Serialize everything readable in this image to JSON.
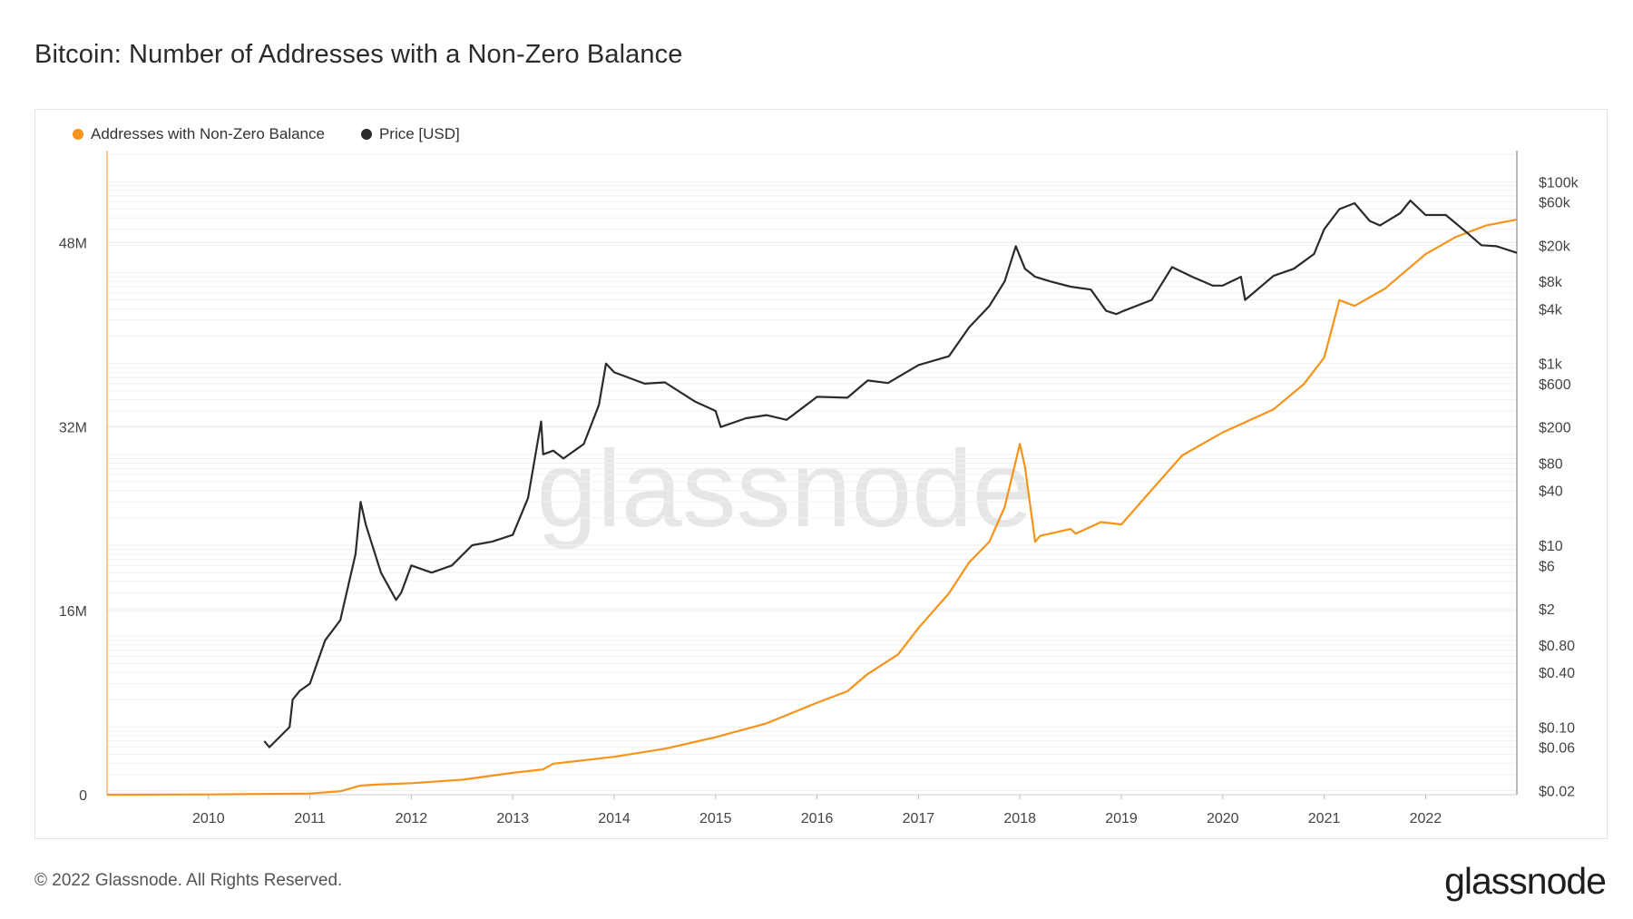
{
  "title": "Bitcoin: Number of Addresses with a Non-Zero Balance",
  "footer": {
    "copyright": "© 2022 Glassnode. All Rights Reserved.",
    "logo_text": "glassnode"
  },
  "watermark": "glassnode",
  "colors": {
    "addresses": "#f7931a",
    "price": "#2b2b2b",
    "grid": "#e9e9e9",
    "axis_text": "#444444"
  },
  "chart_data": {
    "type": "line",
    "title": "Bitcoin: Number of Addresses with a Non-Zero Balance",
    "grid": true,
    "legend_placement": "top-left",
    "x_axis": {
      "ticks": [
        "2010",
        "2011",
        "2012",
        "2013",
        "2014",
        "2015",
        "2016",
        "2017",
        "2018",
        "2019",
        "2020",
        "2021",
        "2022"
      ],
      "range": [
        2009.0,
        2022.9
      ]
    },
    "y_left": {
      "ticks": [
        0,
        16000000,
        32000000,
        48000000
      ],
      "tick_labels": [
        "0",
        "16M",
        "32M",
        "48M"
      ],
      "range": [
        0,
        56000000
      ]
    },
    "y_right": {
      "scale": "log",
      "ticks": [
        0.02,
        0.06,
        0.1,
        0.4,
        0.8,
        2,
        6,
        10,
        40,
        80,
        200,
        600,
        1000,
        4000,
        8000,
        20000,
        60000,
        100000
      ],
      "tick_labels": [
        "$0.02",
        "$0.06",
        "$0.10",
        "$0.40",
        "$0.80",
        "$2",
        "$6",
        "$10",
        "$40",
        "$80",
        "$200",
        "$600",
        "$1k",
        "$4k",
        "$8k",
        "$20k",
        "$60k",
        "$100k"
      ],
      "range": [
        0.018,
        220000
      ]
    },
    "series": [
      {
        "name": "Addresses with Non-Zero Balance",
        "axis": "left",
        "x": [
          2009.0,
          2010.0,
          2011.0,
          2011.3,
          2011.5,
          2011.7,
          2012.0,
          2012.5,
          2013.0,
          2013.3,
          2013.4,
          2014.0,
          2014.5,
          2015.0,
          2015.5,
          2016.0,
          2016.3,
          2016.5,
          2016.8,
          2017.0,
          2017.3,
          2017.5,
          2017.7,
          2017.85,
          2018.0,
          2018.05,
          2018.15,
          2018.2,
          2018.5,
          2018.55,
          2018.8,
          2019.0,
          2019.3,
          2019.6,
          2020.0,
          2020.5,
          2020.8,
          2021.0,
          2021.15,
          2021.3,
          2021.6,
          2021.8,
          2022.0,
          2022.3,
          2022.6,
          2022.9
        ],
        "values": [
          0,
          20000,
          100000,
          300000,
          800000,
          900000,
          1000000,
          1300000,
          1900000,
          2200000,
          2700000,
          3300000,
          4000000,
          5000000,
          6200000,
          8000000,
          9000000,
          10500000,
          12200000,
          14500000,
          17500000,
          20200000,
          22000000,
          25000000,
          30500000,
          28500000,
          22000000,
          22500000,
          23100000,
          22700000,
          23700000,
          23500000,
          26500000,
          29500000,
          31500000,
          33500000,
          35700000,
          38000000,
          43000000,
          42500000,
          44000000,
          45500000,
          47000000,
          48500000,
          49500000,
          50000000
        ]
      },
      {
        "name": "Price [USD]",
        "axis": "right",
        "x": [
          2010.55,
          2010.6,
          2010.8,
          2010.83,
          2010.9,
          2011.0,
          2011.15,
          2011.3,
          2011.45,
          2011.5,
          2011.55,
          2011.7,
          2011.85,
          2011.9,
          2012.0,
          2012.2,
          2012.4,
          2012.6,
          2012.8,
          2013.0,
          2013.15,
          2013.28,
          2013.3,
          2013.4,
          2013.5,
          2013.7,
          2013.85,
          2013.92,
          2014.0,
          2014.3,
          2014.5,
          2014.8,
          2015.0,
          2015.05,
          2015.3,
          2015.5,
          2015.7,
          2016.0,
          2016.3,
          2016.5,
          2016.7,
          2017.0,
          2017.3,
          2017.5,
          2017.7,
          2017.85,
          2017.96,
          2018.05,
          2018.15,
          2018.3,
          2018.5,
          2018.7,
          2018.85,
          2018.95,
          2019.0,
          2019.3,
          2019.5,
          2019.7,
          2019.9,
          2020.0,
          2020.18,
          2020.22,
          2020.5,
          2020.7,
          2020.9,
          2021.0,
          2021.15,
          2021.3,
          2021.45,
          2021.55,
          2021.75,
          2021.85,
          2022.0,
          2022.2,
          2022.4,
          2022.55,
          2022.7,
          2022.9
        ],
        "values": [
          0.07,
          0.06,
          0.1,
          0.2,
          0.25,
          0.3,
          0.9,
          1.5,
          8,
          30,
          17,
          5,
          2.5,
          3,
          6,
          5,
          6,
          10,
          11,
          13,
          33,
          230,
          100,
          110,
          90,
          130,
          350,
          1000,
          800,
          600,
          620,
          380,
          300,
          200,
          250,
          270,
          240,
          430,
          420,
          650,
          610,
          960,
          1200,
          2500,
          4300,
          8000,
          19500,
          11000,
          9000,
          8000,
          7000,
          6500,
          3800,
          3500,
          3700,
          5000,
          11500,
          9000,
          7200,
          7200,
          9000,
          5000,
          9200,
          11000,
          16000,
          30000,
          50000,
          58000,
          37000,
          33000,
          45000,
          62000,
          43000,
          43000,
          28000,
          20000,
          19500,
          16500
        ]
      }
    ]
  }
}
